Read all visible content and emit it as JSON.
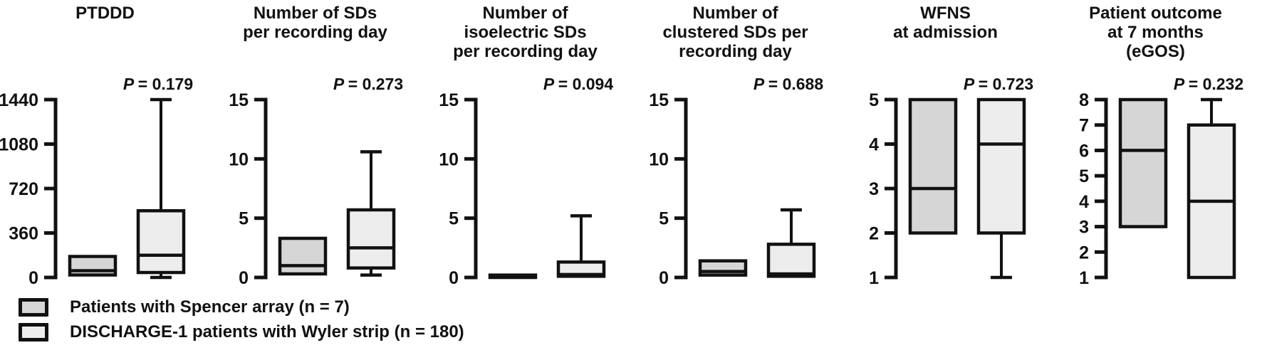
{
  "colors": {
    "background": "#ffffff",
    "stroke": "#111111",
    "spencer_fill": "#d6d6d6",
    "wyler_fill": "#ededed"
  },
  "chart_data": {
    "type": "boxplot",
    "layout": "6 side-by-side panels, each with one vertical y-axis (ticks pointing left, no x-axis) and two vertical box-and-whisker plots; P-value label above boxes; legend bottom-left",
    "groups": [
      {
        "id": "spencer",
        "label": "Patients with Spencer array (n = 7)",
        "fill": "#d6d6d6"
      },
      {
        "id": "wyler",
        "label": "DISCHARGE-1 patients with Wyler strip (n = 180)",
        "fill": "#ededed"
      }
    ],
    "panels": [
      {
        "title_lines": [
          "PTDDD"
        ],
        "p_label": "P = 0.179",
        "axis": {
          "min": 0,
          "max": 1440,
          "ticks": [
            0,
            360,
            720,
            1080,
            1440
          ]
        },
        "boxes": [
          {
            "group": 0,
            "whisker_low": null,
            "q1": 20,
            "median": 55,
            "q3": 170,
            "whisker_high": null
          },
          {
            "group": 1,
            "whisker_low": 0,
            "q1": 40,
            "median": 180,
            "q3": 540,
            "whisker_high": 1440
          }
        ]
      },
      {
        "title_lines": [
          "Number of SDs",
          "per recording day"
        ],
        "p_label": "P = 0.273",
        "axis": {
          "min": 0,
          "max": 15,
          "ticks": [
            0,
            5,
            10,
            15
          ]
        },
        "boxes": [
          {
            "group": 0,
            "whisker_low": null,
            "q1": 0.3,
            "median": 1.0,
            "q3": 3.3,
            "whisker_high": null
          },
          {
            "group": 1,
            "whisker_low": 0.2,
            "q1": 0.8,
            "median": 2.5,
            "q3": 5.7,
            "whisker_high": 10.6
          }
        ]
      },
      {
        "title_lines": [
          "Number of",
          "isoelectric SDs",
          "per recording day"
        ],
        "p_label": "P = 0.094",
        "axis": {
          "min": 0,
          "max": 15,
          "ticks": [
            0,
            5,
            10,
            15
          ]
        },
        "boxes": [
          {
            "group": 0,
            "whisker_low": null,
            "q1": 0,
            "median": 0.1,
            "q3": 0.2,
            "whisker_high": null
          },
          {
            "group": 1,
            "whisker_low": null,
            "q1": 0.1,
            "median": 0.25,
            "q3": 1.3,
            "whisker_high": 5.2
          }
        ]
      },
      {
        "title_lines": [
          "Number of",
          "clustered SDs per",
          "recording day"
        ],
        "p_label": "P = 0.688",
        "axis": {
          "min": 0,
          "max": 15,
          "ticks": [
            0,
            5,
            10,
            15
          ]
        },
        "boxes": [
          {
            "group": 0,
            "whisker_low": null,
            "q1": 0.2,
            "median": 0.5,
            "q3": 1.4,
            "whisker_high": null
          },
          {
            "group": 1,
            "whisker_low": null,
            "q1": 0.1,
            "median": 0.3,
            "q3": 2.8,
            "whisker_high": 5.7
          }
        ]
      },
      {
        "title_lines": [
          "WFNS",
          "at admission"
        ],
        "p_label": "P = 0.723",
        "axis": {
          "min": 1,
          "max": 5,
          "ticks": [
            1,
            2,
            3,
            4,
            5
          ]
        },
        "boxes": [
          {
            "group": 0,
            "whisker_low": null,
            "q1": 2,
            "median": 3,
            "q3": 5,
            "whisker_high": null
          },
          {
            "group": 1,
            "whisker_low": 1,
            "q1": 2,
            "median": 4,
            "q3": 5,
            "whisker_high": null
          }
        ]
      },
      {
        "title_lines": [
          "Patient outcome",
          "at 7 months",
          "(eGOS)"
        ],
        "p_label": "P = 0.232",
        "axis": {
          "min": 1,
          "max": 8,
          "ticks": [
            1,
            2,
            3,
            4,
            5,
            6,
            7,
            8
          ]
        },
        "boxes": [
          {
            "group": 0,
            "whisker_low": null,
            "q1": 3,
            "median": 6,
            "q3": 8,
            "whisker_high": null
          },
          {
            "group": 1,
            "whisker_low": null,
            "q1": 1,
            "median": 4,
            "q3": 7,
            "whisker_high": 8
          }
        ]
      }
    ],
    "legend_position": "bottom-left"
  }
}
